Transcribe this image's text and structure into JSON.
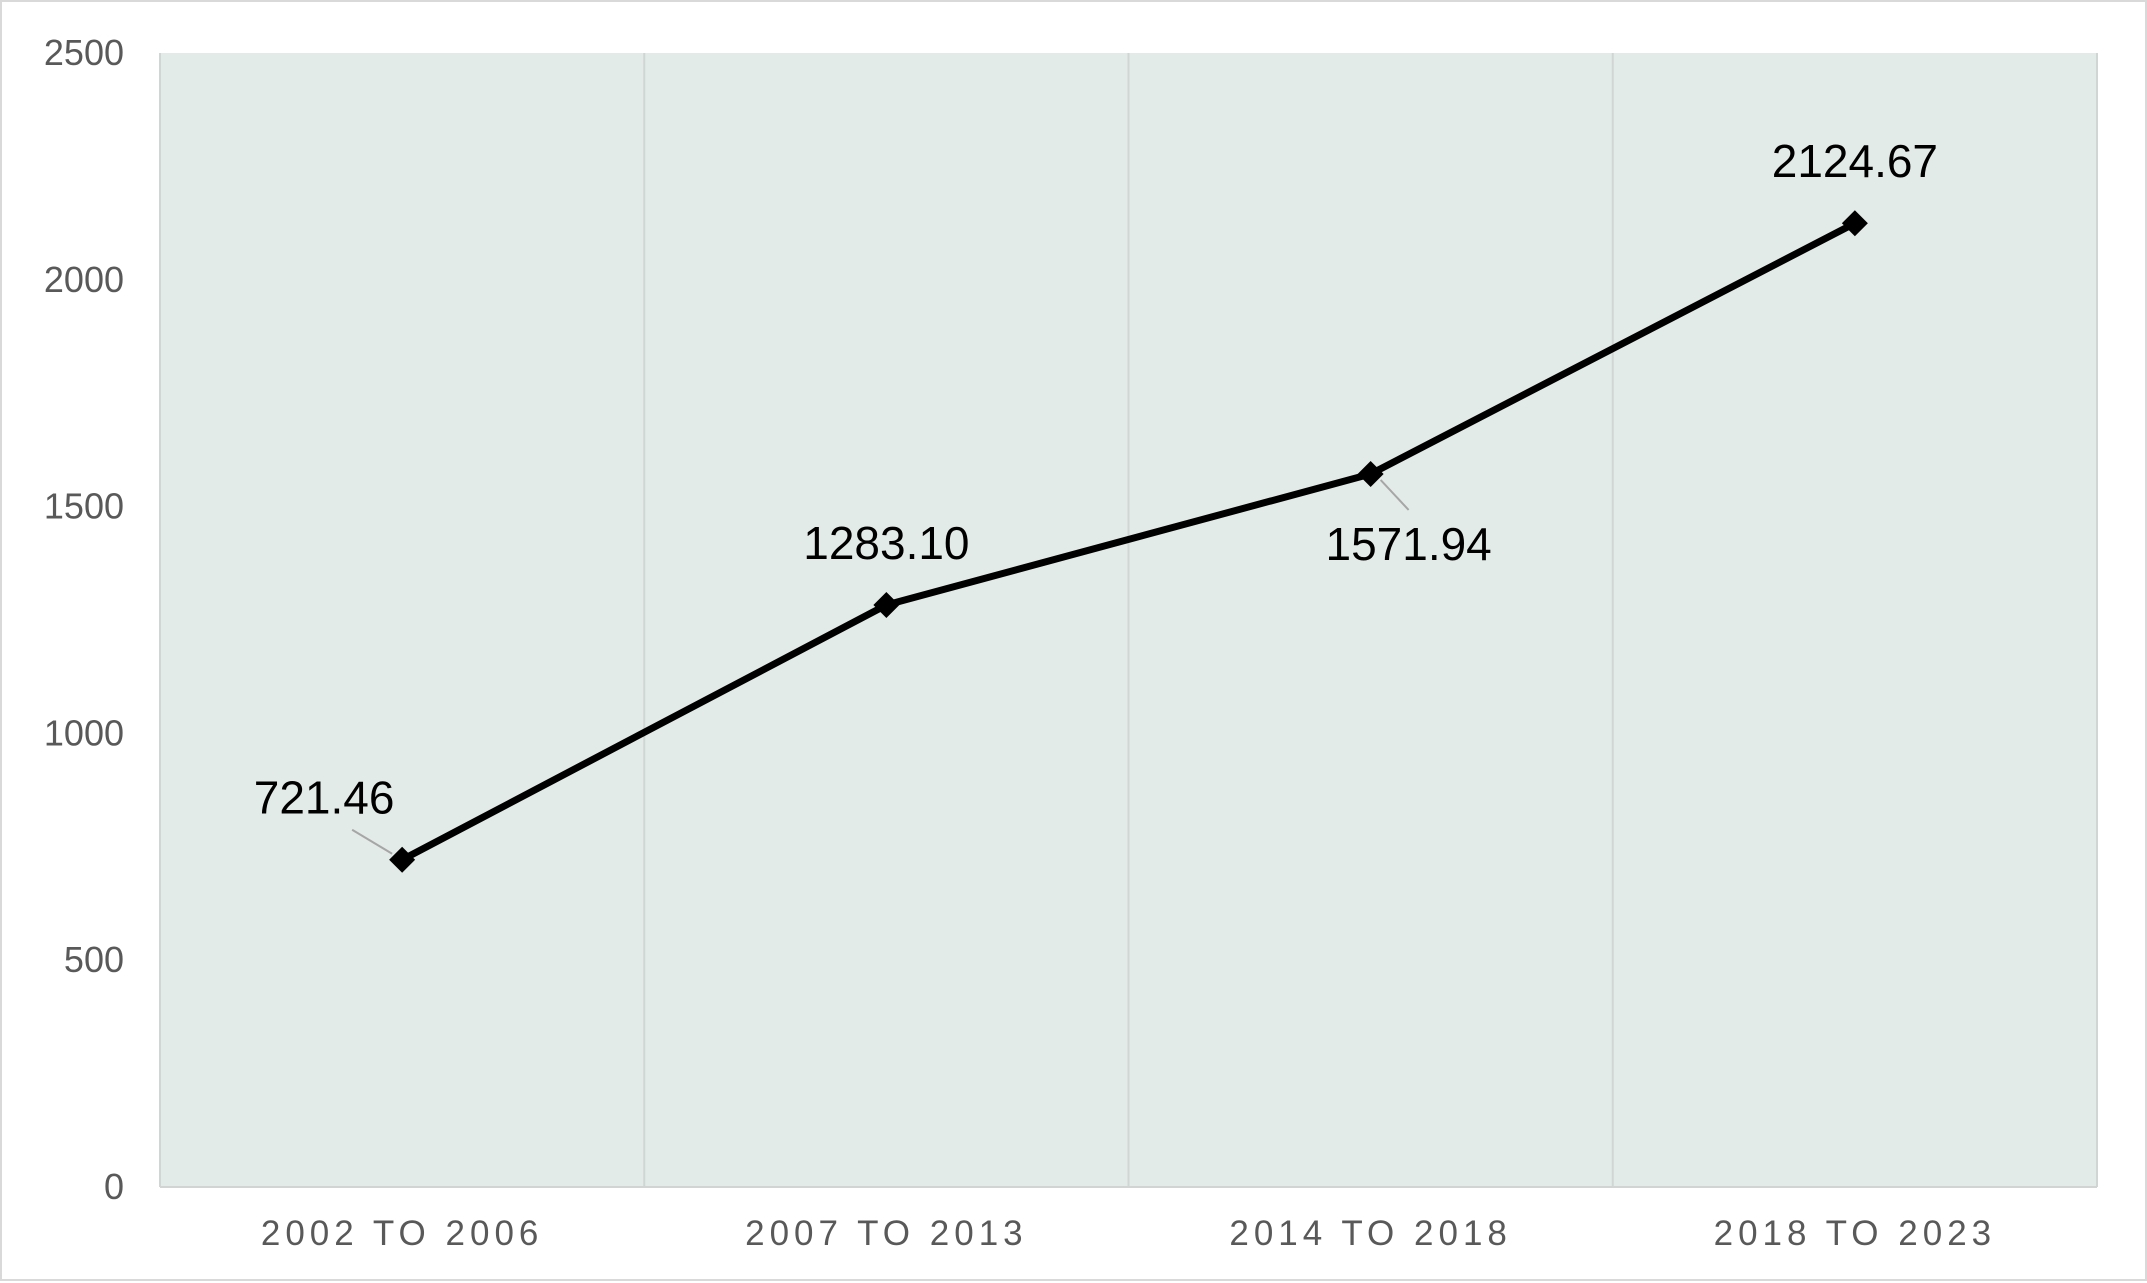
{
  "chart_data": {
    "type": "line",
    "title": "",
    "xlabel": "",
    "ylabel": "",
    "categories": [
      "2002 TO 2006",
      "2007 TO 2013",
      "2014 TO 2018",
      "2018 TO 2023"
    ],
    "series": [
      {
        "values": [
          721.46,
          1283.1,
          1571.94,
          2124.67
        ]
      }
    ],
    "data_labels": [
      "721.46",
      "1283.10",
      "1571.94",
      "2124.67"
    ],
    "y_ticks": [
      "0",
      "500",
      "1000",
      "1500",
      "2000",
      "2500"
    ],
    "ylim": [
      0,
      2500
    ],
    "grid": "vertical",
    "legend": "none",
    "marker": "diamond",
    "colors": {
      "line": "#000000",
      "plot_background": "#e3ebe8",
      "gridline": "#cfd6d4",
      "tick_text": "#595959",
      "label_text": "#000000",
      "leader_line": "#a6a6a6"
    }
  }
}
